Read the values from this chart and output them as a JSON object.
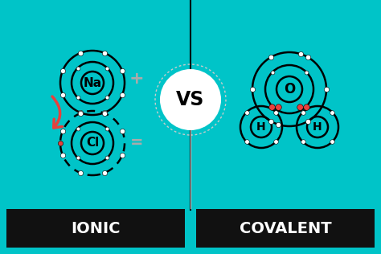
{
  "bg_color": "#00C4C8",
  "divider_color": "#000000",
  "label_bg_color": "#111111",
  "label_text_color": "#ffffff",
  "ionic_label": "IONIC",
  "covalent_label": "COVALENT",
  "vs_text": "VS",
  "na_text": "Na",
  "cl_text": "Cl",
  "o_text": "O",
  "h_text": "H",
  "plus_text": "+",
  "minus_text": "=",
  "atom_line_color": "#000000",
  "sign_color": "#aaaaaa",
  "electron_white": "#ffffff",
  "electron_red": "#E8403C",
  "arrow_color": "#E8403C",
  "orbit_lw": 1.8,
  "figw": 4.74,
  "figh": 3.16,
  "dpi": 100
}
